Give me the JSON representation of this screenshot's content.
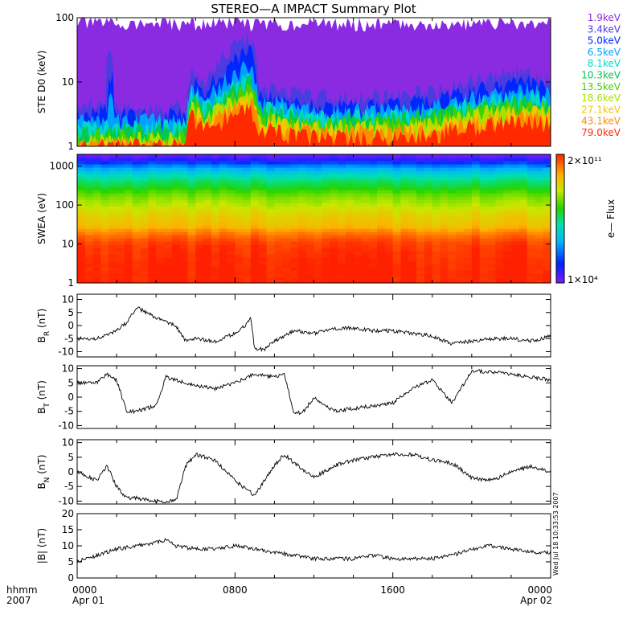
{
  "title": "STEREO—A IMPACT Summary Plot",
  "side_stamp": "Wed Jul 18 10:33:53 2007",
  "x_axis": {
    "row_label": "hhmm",
    "year_label": "2007",
    "range_hours": [
      0,
      24
    ],
    "ticks": [
      {
        "hour": 0,
        "label": "0000",
        "sub": "Apr 01"
      },
      {
        "hour": 8,
        "label": "0800",
        "sub": ""
      },
      {
        "hour": 16,
        "label": "1600",
        "sub": ""
      },
      {
        "hour": 24,
        "label": "0000",
        "sub": "Apr 02"
      }
    ]
  },
  "chart_data": [
    {
      "type": "line",
      "panel": "ste",
      "ylabel": "STE D0 (keV)",
      "yscale": "log",
      "ylim": [
        1,
        100
      ],
      "yticks": [
        {
          "v": 1,
          "label": "1"
        },
        {
          "v": 10,
          "label": "10"
        },
        {
          "v": 100,
          "label": "100"
        }
      ],
      "series": [
        {
          "name": "1.9keV",
          "color": "#8a2be2",
          "profile": [
            [
              0,
              85
            ],
            [
              3,
              80
            ],
            [
              6,
              80
            ],
            [
              8,
              85
            ],
            [
              9,
              80
            ],
            [
              12,
              82
            ],
            [
              16,
              80
            ],
            [
              20,
              80
            ],
            [
              22,
              82
            ],
            [
              24,
              80
            ]
          ]
        },
        {
          "name": "3.4keV",
          "color": "#4a3ce0",
          "profile": [
            [
              0,
              4
            ],
            [
              1.4,
              4.5
            ],
            [
              1.5,
              25
            ],
            [
              1.7,
              30
            ],
            [
              1.9,
              4
            ],
            [
              5.5,
              4
            ],
            [
              5.8,
              15
            ],
            [
              6.5,
              8
            ],
            [
              8.8,
              50
            ],
            [
              9.2,
              8
            ],
            [
              12,
              6
            ],
            [
              16,
              6
            ],
            [
              18,
              7
            ],
            [
              21,
              12
            ],
            [
              23,
              15
            ],
            [
              24,
              10
            ]
          ]
        },
        {
          "name": "5.0keV",
          "color": "#0026ff",
          "profile": [
            [
              0,
              3
            ],
            [
              1.5,
              3.5
            ],
            [
              1.6,
              12
            ],
            [
              1.8,
              15
            ],
            [
              1.9,
              3
            ],
            [
              5.5,
              3
            ],
            [
              5.8,
              10
            ],
            [
              6.5,
              6
            ],
            [
              8.8,
              30
            ],
            [
              9.2,
              6
            ],
            [
              12,
              4
            ],
            [
              16,
              4.5
            ],
            [
              18,
              5
            ],
            [
              21,
              8
            ],
            [
              23,
              10
            ],
            [
              24,
              7
            ]
          ]
        },
        {
          "name": "6.5keV",
          "color": "#00a0ff",
          "profile": [
            [
              0,
              2.4
            ],
            [
              1.5,
              2.5
            ],
            [
              1.7,
              6
            ],
            [
              1.9,
              2.4
            ],
            [
              5.5,
              2.5
            ],
            [
              5.8,
              8
            ],
            [
              6.5,
              5
            ],
            [
              8.8,
              18
            ],
            [
              9.2,
              5
            ],
            [
              12,
              3.5
            ],
            [
              16,
              3.5
            ],
            [
              18,
              4
            ],
            [
              21,
              6
            ],
            [
              23,
              8
            ],
            [
              24,
              6
            ]
          ]
        },
        {
          "name": "8.1keV",
          "color": "#00d8c8",
          "profile": [
            [
              0,
              2
            ],
            [
              5.5,
              2.1
            ],
            [
              5.8,
              7
            ],
            [
              6.5,
              4
            ],
            [
              8.8,
              12
            ],
            [
              9.2,
              4
            ],
            [
              12,
              3
            ],
            [
              16,
              3
            ],
            [
              18,
              3.5
            ],
            [
              21,
              5
            ],
            [
              23,
              6
            ],
            [
              24,
              5
            ]
          ]
        },
        {
          "name": "10.3keV",
          "color": "#00c850",
          "profile": [
            [
              0,
              1.7
            ],
            [
              5.5,
              1.8
            ],
            [
              5.8,
              6
            ],
            [
              6.5,
              3.5
            ],
            [
              8.8,
              10
            ],
            [
              9.2,
              3.5
            ],
            [
              12,
              2.5
            ],
            [
              16,
              2.6
            ],
            [
              18,
              3
            ],
            [
              21,
              4.5
            ],
            [
              23,
              5
            ],
            [
              24,
              4.5
            ]
          ]
        },
        {
          "name": "13.5keV",
          "color": "#44d000",
          "profile": [
            [
              0,
              1.4
            ],
            [
              5.5,
              1.5
            ],
            [
              5.8,
              5
            ],
            [
              6.5,
              3
            ],
            [
              8.8,
              8
            ],
            [
              9.2,
              3
            ],
            [
              12,
              2.2
            ],
            [
              16,
              2.2
            ],
            [
              18,
              2.6
            ],
            [
              21,
              4
            ],
            [
              23,
              4.5
            ],
            [
              24,
              4
            ]
          ]
        },
        {
          "name": "18.6keV",
          "color": "#a8e000",
          "profile": [
            [
              0,
              1.2
            ],
            [
              5.5,
              1.3
            ],
            [
              5.8,
              4.5
            ],
            [
              6.5,
              2.5
            ],
            [
              8.8,
              7
            ],
            [
              9.2,
              2.6
            ],
            [
              12,
              2
            ],
            [
              16,
              2
            ],
            [
              18,
              2.3
            ],
            [
              21,
              3.5
            ],
            [
              23,
              4
            ],
            [
              24,
              3.5
            ]
          ]
        },
        {
          "name": "27.1keV",
          "color": "#f0c800",
          "profile": [
            [
              0,
              1.1
            ],
            [
              5.5,
              1.1
            ],
            [
              5.8,
              4
            ],
            [
              6.5,
              2.2
            ],
            [
              8.8,
              6
            ],
            [
              9.2,
              2.3
            ],
            [
              12,
              1.8
            ],
            [
              16,
              1.8
            ],
            [
              18,
              2
            ],
            [
              21,
              3
            ],
            [
              23,
              3.5
            ],
            [
              24,
              3
            ]
          ]
        },
        {
          "name": "43.1keV",
          "color": "#ff8c00",
          "profile": [
            [
              0,
              1
            ],
            [
              5.5,
              1
            ],
            [
              5.8,
              3.5
            ],
            [
              6.5,
              2
            ],
            [
              8.8,
              5
            ],
            [
              9.2,
              2
            ],
            [
              12,
              1.6
            ],
            [
              16,
              1.6
            ],
            [
              18,
              1.8
            ],
            [
              21,
              2.6
            ],
            [
              23,
              3
            ],
            [
              24,
              2.7
            ]
          ]
        },
        {
          "name": "79.0keV",
          "color": "#ff2a00",
          "profile": [
            [
              0,
              1
            ],
            [
              5.5,
              1
            ],
            [
              5.8,
              3
            ],
            [
              6.5,
              1.8
            ],
            [
              8.8,
              4
            ],
            [
              9.2,
              1.8
            ],
            [
              12,
              1.4
            ],
            [
              16,
              1.4
            ],
            [
              18,
              1.6
            ],
            [
              21,
              2.3
            ],
            [
              23,
              2.6
            ],
            [
              24,
              2.4
            ]
          ]
        }
      ]
    },
    {
      "type": "heatmap",
      "panel": "swea",
      "ylabel": "SWEA (eV)",
      "yscale": "log",
      "ylim": [
        1,
        2000
      ],
      "yticks": [
        {
          "v": 1,
          "label": "1"
        },
        {
          "v": 10,
          "label": "10"
        },
        {
          "v": 100,
          "label": "100"
        },
        {
          "v": 1000,
          "label": "1000"
        }
      ],
      "colorbar": {
        "label": "e— Flux",
        "max_label": "2×10¹¹",
        "min_label": "1×10⁴",
        "range": [
          10000,
          200000000000
        ]
      },
      "profile_energy_eV": [
        [
          1,
          200000000000
        ],
        [
          10,
          120000000000
        ],
        [
          30,
          8000000000
        ],
        [
          100,
          1500000000
        ],
        [
          300,
          100000000
        ],
        [
          800,
          3000000
        ],
        [
          1500,
          50000
        ],
        [
          2000,
          10000
        ]
      ]
    },
    {
      "type": "line",
      "panel": "br",
      "ylabel": "B_R (nT)",
      "ylim": [
        -12,
        12
      ],
      "yticks": [
        {
          "v": -10,
          "label": "-10"
        },
        {
          "v": -5,
          "label": "-5"
        },
        {
          "v": 0,
          "label": "0"
        },
        {
          "v": 5,
          "label": "5"
        },
        {
          "v": 10,
          "label": "10"
        }
      ],
      "x": [
        0,
        1,
        2,
        2.5,
        3,
        3.5,
        4,
        5,
        5.5,
        6,
        7,
        8,
        8.5,
        8.8,
        9,
        9.5,
        10,
        11,
        12,
        13,
        14,
        15,
        16,
        17,
        18,
        19,
        20,
        21,
        22,
        23,
        24
      ],
      "values": [
        -5,
        -5,
        -2,
        1,
        7,
        5,
        3,
        0,
        -6,
        -5,
        -6,
        -3,
        0,
        3,
        -9,
        -9,
        -6,
        -2,
        -3,
        -1,
        -1,
        -2,
        -2,
        -3,
        -4,
        -7,
        -6,
        -5,
        -5,
        -6,
        -4
      ]
    },
    {
      "type": "line",
      "panel": "bt",
      "ylabel": "B_T (nT)",
      "ylim": [
        -11,
        11
      ],
      "yticks": [
        {
          "v": -10,
          "label": "-10"
        },
        {
          "v": -5,
          "label": "-5"
        },
        {
          "v": 0,
          "label": "0"
        },
        {
          "v": 5,
          "label": "5"
        },
        {
          "v": 10,
          "label": "10"
        }
      ],
      "x": [
        0,
        1,
        1.5,
        2,
        2.5,
        3,
        4,
        4.5,
        5,
        6,
        7,
        8,
        9,
        10,
        10.5,
        11,
        11.5,
        12,
        13,
        14,
        15,
        16,
        17,
        18,
        19,
        20,
        21,
        22,
        23,
        24
      ],
      "values": [
        5,
        5,
        8,
        6,
        -5,
        -5,
        -3,
        7,
        6,
        4,
        3,
        5,
        8,
        7,
        8,
        -6,
        -5,
        0,
        -5,
        -4,
        -3,
        -2,
        3,
        6,
        -2,
        9,
        9,
        8,
        7,
        6
      ]
    },
    {
      "type": "line",
      "panel": "bn",
      "ylabel": "B_N (nT)",
      "ylim": [
        -11,
        11
      ],
      "yticks": [
        {
          "v": -10,
          "label": "-10"
        },
        {
          "v": -5,
          "label": "-5"
        },
        {
          "v": 0,
          "label": "0"
        },
        {
          "v": 5,
          "label": "5"
        },
        {
          "v": 10,
          "label": "10"
        }
      ],
      "x": [
        0,
        1,
        1.5,
        2,
        2.5,
        3,
        4,
        5,
        5.5,
        6,
        7,
        8,
        9,
        10,
        10.5,
        11,
        12,
        13,
        14,
        15,
        16,
        17,
        18,
        19,
        20,
        21,
        22,
        23,
        24
      ],
      "values": [
        0,
        -3,
        2,
        -5,
        -9,
        -9,
        -10,
        -10,
        2,
        6,
        4,
        -3,
        -8,
        2,
        6,
        3,
        -2,
        2,
        4,
        5,
        6,
        6,
        4,
        3,
        -2,
        -3,
        0,
        2,
        0
      ]
    },
    {
      "type": "line",
      "panel": "bmag",
      "ylabel": "|B| (nT)",
      "ylim": [
        0,
        20
      ],
      "yticks": [
        {
          "v": 0,
          "label": "0"
        },
        {
          "v": 5,
          "label": "5"
        },
        {
          "v": 10,
          "label": "10"
        },
        {
          "v": 15,
          "label": "15"
        },
        {
          "v": 20,
          "label": "20"
        }
      ],
      "x": [
        0,
        1,
        2,
        3,
        4,
        4.5,
        5,
        6,
        7,
        8,
        9,
        10,
        11,
        12,
        13,
        14,
        15,
        16,
        17,
        18,
        19,
        20,
        21,
        22,
        23,
        24
      ],
      "values": [
        5,
        7,
        9,
        10,
        11,
        12,
        10,
        9,
        9,
        10,
        9,
        8,
        7,
        6,
        6,
        6,
        7,
        6,
        6,
        6,
        7,
        9,
        10,
        9,
        8,
        8
      ]
    }
  ]
}
